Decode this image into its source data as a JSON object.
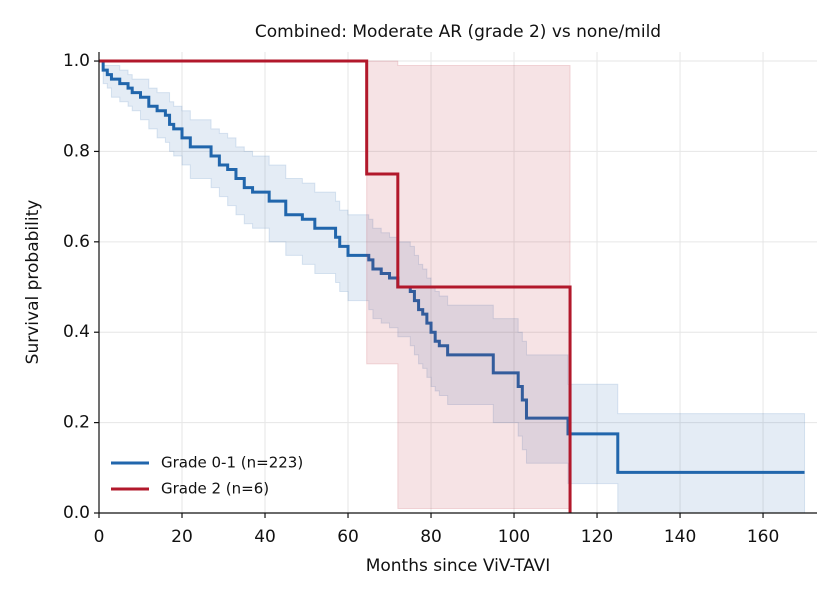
{
  "chart_data": {
    "type": "step",
    "title": "Combined: Moderate AR (grade 2) vs none/mild",
    "x_label": "Months since ViV-TAVI",
    "y_label": "Survival probability",
    "xlim": [
      0,
      173
    ],
    "ylim": [
      0,
      1.02
    ],
    "xticks": [
      0,
      20,
      40,
      60,
      80,
      100,
      120,
      140,
      160
    ],
    "yticks": [
      {
        "value": 0,
        "label": "0.0"
      },
      0.2,
      0.4,
      0.6,
      0.8,
      {
        "value": 1,
        "label": "1.0"
      }
    ],
    "grid": true,
    "legend": "lower left",
    "series": [
      {
        "name": "Grade 0-1 (n=223)",
        "color": "#2166ac",
        "x": [
          0,
          1,
          2,
          3,
          5,
          7,
          8,
          10,
          12,
          14,
          16,
          17,
          18,
          20,
          22,
          27,
          29,
          31,
          33,
          35,
          37,
          41,
          45,
          49,
          52,
          57,
          58,
          60,
          65,
          66,
          68,
          70,
          72,
          75,
          76,
          77,
          78,
          79,
          80,
          81,
          82,
          84,
          95,
          101,
          102,
          103,
          113,
          125,
          170
        ],
        "values": [
          1,
          0.98,
          0.97,
          0.96,
          0.95,
          0.94,
          0.93,
          0.92,
          0.9,
          0.89,
          0.88,
          0.86,
          0.85,
          0.83,
          0.81,
          0.79,
          0.77,
          0.76,
          0.74,
          0.72,
          0.71,
          0.69,
          0.66,
          0.65,
          0.63,
          0.61,
          0.59,
          0.57,
          0.56,
          0.54,
          0.53,
          0.52,
          0.5,
          0.49,
          0.47,
          0.45,
          0.44,
          0.42,
          0.4,
          0.38,
          0.37,
          0.35,
          0.31,
          0.28,
          0.25,
          0.21,
          0.175,
          0.09,
          0.09
        ],
        "ci_lower": [
          1,
          0.95,
          0.94,
          0.92,
          0.91,
          0.9,
          0.89,
          0.87,
          0.85,
          0.83,
          0.82,
          0.8,
          0.79,
          0.77,
          0.74,
          0.72,
          0.7,
          0.68,
          0.66,
          0.64,
          0.63,
          0.6,
          0.57,
          0.55,
          0.53,
          0.51,
          0.49,
          0.47,
          0.45,
          0.43,
          0.42,
          0.41,
          0.39,
          0.37,
          0.35,
          0.33,
          0.32,
          0.3,
          0.28,
          0.27,
          0.26,
          0.24,
          0.2,
          0.17,
          0.14,
          0.11,
          0.065,
          0,
          0
        ],
        "ci_upper": [
          1,
          0.99,
          0.99,
          0.99,
          0.98,
          0.97,
          0.96,
          0.96,
          0.94,
          0.93,
          0.93,
          0.91,
          0.9,
          0.89,
          0.87,
          0.85,
          0.84,
          0.83,
          0.81,
          0.8,
          0.79,
          0.77,
          0.74,
          0.73,
          0.71,
          0.69,
          0.67,
          0.66,
          0.65,
          0.63,
          0.62,
          0.61,
          0.6,
          0.59,
          0.57,
          0.55,
          0.54,
          0.52,
          0.5,
          0.49,
          0.48,
          0.46,
          0.43,
          0.4,
          0.38,
          0.35,
          0.285,
          0.22,
          0.22
        ]
      },
      {
        "name": "Grade 2 (n=6)",
        "color": "#b2182b",
        "x": [
          0,
          64.5,
          72,
          113.5
        ],
        "values": [
          1,
          0.75,
          0.5,
          0
        ],
        "ci_lower": [
          1,
          0.33,
          0.01,
          0
        ],
        "ci_upper": [
          1,
          1,
          0.99,
          0
        ]
      }
    ]
  }
}
